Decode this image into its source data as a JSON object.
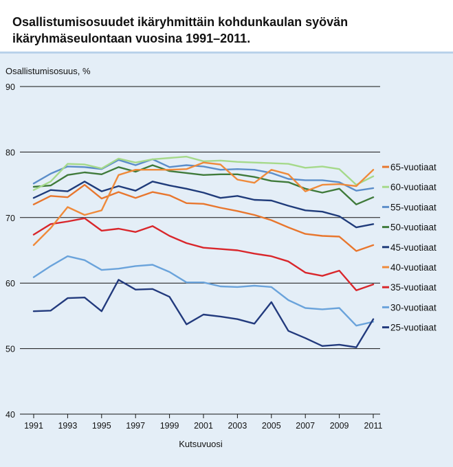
{
  "chart_data": {
    "type": "line",
    "title": "Osallistumisosuudet ikäryhmittäin kohdunkaulan syövän ikäryhmäseulontaan vuosina 1991–2011.",
    "ylabel": "Osallistumisosuus, %",
    "xlabel": "Kutsuvuosi",
    "ylim": [
      40,
      90
    ],
    "xlim": [
      1991,
      2011
    ],
    "yticks": [
      40,
      50,
      60,
      70,
      80,
      90
    ],
    "xticks": [
      1991,
      1993,
      1995,
      1997,
      1999,
      2001,
      2003,
      2005,
      2007,
      2009,
      2011
    ],
    "grid": "horizontal",
    "legend": "right",
    "x": [
      1991,
      1992,
      1993,
      1994,
      1995,
      1996,
      1997,
      1998,
      1999,
      2000,
      2001,
      2002,
      2003,
      2004,
      2005,
      2006,
      2007,
      2008,
      2009,
      2010,
      2011
    ],
    "series": [
      {
        "name": "65-vuotiaat",
        "color": "#e8762d",
        "values": [
          72.0,
          73.3,
          73.1,
          75.0,
          72.9,
          73.9,
          73.0,
          73.9,
          73.4,
          72.2,
          72.1,
          71.5,
          71.0,
          70.4,
          69.6,
          68.5,
          67.5,
          67.2,
          67.1,
          64.9,
          65.8
        ]
      },
      {
        "name": "60-vuotiaat",
        "color": "#a5d98a",
        "values": [
          74.2,
          75.5,
          78.2,
          78.1,
          77.5,
          79.0,
          78.4,
          78.9,
          79.1,
          79.3,
          78.6,
          78.7,
          78.5,
          78.4,
          78.3,
          78.2,
          77.6,
          77.8,
          77.4,
          75.0,
          76.3
        ]
      },
      {
        "name": "55-vuotiaat",
        "color": "#5b8dc9",
        "values": [
          75.2,
          76.7,
          77.8,
          77.7,
          77.4,
          78.8,
          78.0,
          78.9,
          77.7,
          78.0,
          77.8,
          77.3,
          77.4,
          77.3,
          76.8,
          75.9,
          75.7,
          75.7,
          75.4,
          74.1,
          74.5
        ]
      },
      {
        "name": "50-vuotiaat",
        "color": "#3f7a3a",
        "values": [
          74.7,
          74.9,
          76.5,
          76.9,
          76.6,
          77.7,
          77.0,
          78.0,
          77.1,
          76.8,
          76.5,
          76.6,
          76.6,
          76.2,
          75.6,
          75.4,
          74.4,
          73.8,
          74.4,
          72.0,
          73.1
        ]
      },
      {
        "name": "45-vuotiaat",
        "color": "#1f3b7a",
        "values": [
          73.0,
          74.2,
          74.0,
          75.5,
          74.0,
          74.8,
          74.1,
          75.5,
          74.9,
          74.4,
          73.8,
          73.0,
          73.3,
          72.7,
          72.6,
          71.8,
          71.1,
          70.9,
          70.2,
          68.5,
          69.0
        ]
      },
      {
        "name": "40-vuotiaat",
        "color": "#ef8a3a",
        "values": [
          65.8,
          68.4,
          71.6,
          70.4,
          71.1,
          76.5,
          77.3,
          77.3,
          77.3,
          77.4,
          78.4,
          78.1,
          75.8,
          75.3,
          77.3,
          76.6,
          74.0,
          75.0,
          75.1,
          74.8,
          77.3
        ]
      },
      {
        "name": "35-vuotiaat",
        "color": "#d9262b",
        "values": [
          67.4,
          69.0,
          69.4,
          69.9,
          68.0,
          68.3,
          67.8,
          68.7,
          67.2,
          66.1,
          65.4,
          65.2,
          65.0,
          64.5,
          64.1,
          63.3,
          61.6,
          61.1,
          61.9,
          58.9,
          59.8
        ]
      },
      {
        "name": "30-vuotiaat",
        "color": "#6aa3db",
        "values": [
          60.9,
          62.6,
          64.1,
          63.5,
          62.0,
          62.2,
          62.6,
          62.8,
          61.7,
          60.1,
          60.1,
          59.5,
          59.4,
          59.6,
          59.4,
          57.4,
          56.2,
          56.0,
          56.2,
          53.5,
          54.1
        ]
      },
      {
        "name": "25-vuotiaat",
        "color": "#223a7d",
        "values": [
          55.7,
          55.8,
          57.7,
          57.8,
          55.7,
          60.5,
          59.0,
          59.1,
          57.9,
          53.7,
          55.2,
          54.9,
          54.5,
          53.8,
          57.1,
          52.7,
          51.6,
          50.4,
          50.6,
          50.2,
          54.5
        ]
      }
    ]
  }
}
